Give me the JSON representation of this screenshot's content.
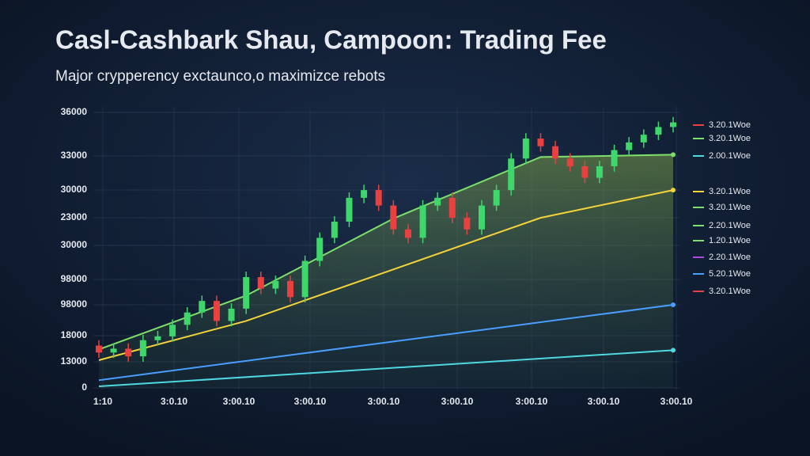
{
  "chart_data": {
    "type": "candlestick",
    "title": "Casl-Cashbark Shau, Campoon: Trading Fee",
    "subtitle": "Major crypperency exctaunco,o maximizce rebots",
    "ylim": [
      0,
      36000
    ],
    "xlim": [
      0,
      39
    ],
    "y_axis_labels": [
      "36000",
      "33000",
      "30000",
      "23000",
      "30000",
      "98000",
      "98000",
      "18000",
      "13000",
      "0"
    ],
    "x_axis_labels": [
      "1:10",
      "3:0.10",
      "3:00.10",
      "3:00.10",
      "3:00.10",
      "3:00.10",
      "3:00.10",
      "3:00.10",
      "3:00.10"
    ],
    "grid": true,
    "up_color": "#3fd66b",
    "down_color": "#e8413f",
    "candles": {
      "open": [
        5500,
        4600,
        5100,
        4100,
        6200,
        6700,
        8200,
        9800,
        11300,
        8700,
        10300,
        14400,
        12900,
        13900,
        11800,
        16500,
        19500,
        21600,
        24700,
        25700,
        23700,
        20600,
        19500,
        23700,
        24700,
        22100,
        20600,
        23700,
        25700,
        29800,
        32400,
        31400,
        29800,
        28800,
        27300,
        28800,
        30900,
        31900,
        32900,
        33900
      ],
      "high": [
        6200,
        5800,
        5800,
        6900,
        7400,
        8900,
        10500,
        12000,
        12000,
        11000,
        15100,
        15100,
        14600,
        14600,
        17200,
        20200,
        22300,
        25400,
        26400,
        26400,
        24400,
        21300,
        24400,
        25400,
        25400,
        22800,
        24400,
        26400,
        30500,
        33100,
        33100,
        32100,
        30500,
        29500,
        29500,
        31600,
        32600,
        33600,
        34600,
        35200
      ],
      "low": [
        3900,
        3900,
        3400,
        3400,
        5500,
        6000,
        7500,
        9100,
        8000,
        8000,
        9600,
        12200,
        12200,
        11100,
        11100,
        15800,
        18800,
        20900,
        24000,
        23000,
        19900,
        18800,
        18800,
        23000,
        21400,
        19900,
        19900,
        23000,
        25000,
        29100,
        30700,
        29100,
        28100,
        26600,
        26600,
        28100,
        30200,
        31200,
        32200,
        33200
      ],
      "close": [
        4600,
        5100,
        4100,
        6200,
        6700,
        8200,
        9800,
        11300,
        8700,
        10300,
        14400,
        12900,
        13900,
        11800,
        16500,
        19500,
        21600,
        24700,
        25700,
        23700,
        20600,
        19500,
        23700,
        24700,
        22100,
        20600,
        23700,
        25700,
        29800,
        32400,
        31400,
        29800,
        28800,
        27300,
        28800,
        30900,
        31900,
        32900,
        33900,
        34500
      ]
    },
    "series": [
      {
        "color": "#7ee06a",
        "x": [
          0,
          10,
          20,
          30,
          39
        ],
        "values": [
          5000,
          12000,
          22000,
          30000,
          30300
        ]
      },
      {
        "color": "#f5d33a",
        "x": [
          0,
          10,
          20,
          30,
          39
        ],
        "values": [
          3600,
          8700,
          15400,
          22100,
          25700
        ]
      },
      {
        "color": "#4a9eff",
        "x": [
          0,
          39
        ],
        "values": [
          1000,
          10800
        ]
      },
      {
        "color": "#4fd8e0",
        "x": [
          0,
          39
        ],
        "values": [
          200,
          4900
        ]
      }
    ],
    "legend": [
      {
        "label": "3.20.1Woe",
        "color": "#e8413f"
      },
      {
        "label": "3.20.1Woe",
        "color": "#7ee06a"
      },
      {
        "label": "2.00.1Woe",
        "color": "#4fd8e0"
      },
      {
        "label": "3.20.1Woe",
        "color": "#f5d33a"
      },
      {
        "label": "3.20.1Woe",
        "color": "#7ee06a"
      },
      {
        "label": "2.20.1Woe",
        "color": "#7ee06a"
      },
      {
        "label": "1.20.1Woe",
        "color": "#7ee06a"
      },
      {
        "label": "2.20.1Woe",
        "color": "#b04adf"
      },
      {
        "label": "5.20.1Woe",
        "color": "#4a9eff"
      },
      {
        "label": "3.20.1Woe",
        "color": "#e8413f"
      }
    ]
  }
}
